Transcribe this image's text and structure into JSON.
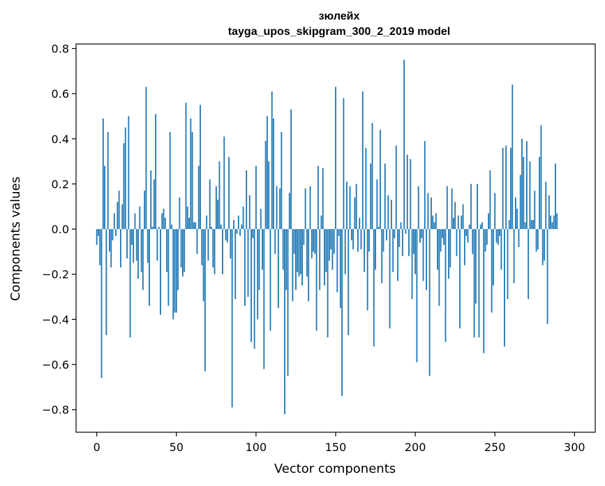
{
  "chart_data": {
    "type": "bar",
    "title": "зюлейх",
    "subtitle": "tayga_upos_skipgram_300_2_2019 model",
    "xlabel": "Vector components",
    "ylabel": "Components values",
    "xlim": [
      -13,
      313
    ],
    "ylim": [
      -0.9,
      0.82
    ],
    "xticks": [
      0,
      50,
      100,
      150,
      200,
      250,
      300
    ],
    "yticks": [
      -0.8,
      -0.6,
      -0.4,
      -0.2,
      0.0,
      0.2,
      0.4,
      0.6,
      0.8
    ],
    "ytick_labels": [
      "−0.8",
      "−0.6",
      "−0.4",
      "−0.2",
      "0.0",
      "0.2",
      "0.4",
      "0.6",
      "0.8"
    ],
    "bar_color": "#1f77b4",
    "values": [
      -0.07,
      -0.03,
      -0.16,
      -0.66,
      0.49,
      0.28,
      -0.47,
      0.43,
      -0.1,
      -0.17,
      -0.05,
      0.07,
      -0.03,
      0.12,
      0.17,
      -0.17,
      0.11,
      0.38,
      0.45,
      -0.13,
      0.5,
      -0.48,
      -0.07,
      -0.15,
      0.07,
      -0.14,
      -0.22,
      0.1,
      -0.19,
      -0.27,
      0.17,
      0.63,
      -0.15,
      -0.34,
      0.26,
      0.01,
      0.22,
      0.51,
      -0.14,
      0.01,
      -0.38,
      0.07,
      0.09,
      0.05,
      -0.19,
      -0.34,
      0.43,
      0.02,
      -0.4,
      -0.37,
      -0.37,
      -0.27,
      0.14,
      -0.17,
      -0.21,
      -0.19,
      0.56,
      0.1,
      0.05,
      0.49,
      0.43,
      0.03,
      0.03,
      -0.11,
      0.28,
      0.55,
      -0.16,
      -0.32,
      -0.63,
      0.06,
      -0.14,
      0.22,
      0.01,
      -0.17,
      -0.2,
      0.19,
      0.13,
      0.3,
      0.02,
      -0.2,
      0.41,
      -0.05,
      -0.06,
      0.32,
      -0.13,
      -0.79,
      0.04,
      -0.31,
      -0.02,
      0.06,
      -0.03,
      0.02,
      0.1,
      -0.34,
      0.26,
      -0.3,
      0.15,
      -0.5,
      -0.04,
      -0.53,
      0.28,
      -0.4,
      -0.27,
      0.09,
      -0.18,
      -0.62,
      0.39,
      0.5,
      0.3,
      -0.45,
      0.61,
      0.49,
      -0.11,
      0.19,
      -0.35,
      0.18,
      0.43,
      -0.18,
      -0.82,
      -0.27,
      -0.65,
      0.16,
      0.53,
      -0.32,
      -0.11,
      -0.27,
      -0.19,
      -0.21,
      -0.2,
      -0.25,
      -0.07,
      0.18,
      -0.21,
      -0.32,
      0.19,
      -0.13,
      -0.1,
      -0.11,
      -0.45,
      0.28,
      -0.27,
      0.06,
      0.27,
      -0.25,
      -0.19,
      -0.48,
      -0.14,
      -0.09,
      -0.18,
      -0.11,
      0.63,
      -0.28,
      -0.03,
      -0.35,
      -0.74,
      0.58,
      -0.2,
      0.21,
      -0.47,
      0.19,
      -0.05,
      -0.09,
      0.14,
      0.2,
      -0.1,
      0.05,
      -0.09,
      0.61,
      -0.19,
      0.36,
      -0.36,
      -0.1,
      0.29,
      0.47,
      -0.52,
      -0.18,
      0.22,
      0.01,
      0.44,
      -0.24,
      -0.1,
      0.29,
      -0.05,
      0.15,
      -0.44,
      0.13,
      -0.19,
      -0.04,
      0.37,
      -0.23,
      -0.08,
      0.03,
      -0.12,
      0.75,
      -0.02,
      0.33,
      -0.12,
      0.31,
      -0.31,
      -0.11,
      -0.2,
      -0.59,
      0.19,
      -0.06,
      -0.04,
      -0.23,
      0.39,
      -0.27,
      0.16,
      -0.65,
      0.14,
      0.06,
      0.03,
      0.07,
      -0.18,
      -0.34,
      -0.1,
      -0.04,
      -0.07,
      -0.5,
      0.19,
      -0.22,
      -0.17,
      0.18,
      0.05,
      0.12,
      -0.12,
      0.06,
      -0.44,
      0.06,
      0.11,
      -0.16,
      -0.03,
      -0.06,
      0.02,
      0.2,
      -0.11,
      -0.48,
      -0.33,
      0.2,
      -0.48,
      0.02,
      0.03,
      -0.55,
      -0.1,
      -0.07,
      0.07,
      0.26,
      -0.37,
      -0.25,
      0.16,
      -0.06,
      -0.07,
      -0.03,
      -0.18,
      0.36,
      -0.52,
      0.37,
      -0.31,
      0.04,
      0.36,
      0.64,
      -0.24,
      0.14,
      0.09,
      -0.08,
      0.24,
      0.4,
      0.32,
      0.03,
      0.39,
      -0.31,
      0.3,
      0.04,
      0.04,
      0.17,
      -0.1,
      -0.09,
      0.32,
      0.46,
      -0.16,
      -0.14,
      0.21,
      -0.42,
      0.15,
      0.06,
      0.03,
      0.06,
      0.29,
      0.07
    ]
  }
}
